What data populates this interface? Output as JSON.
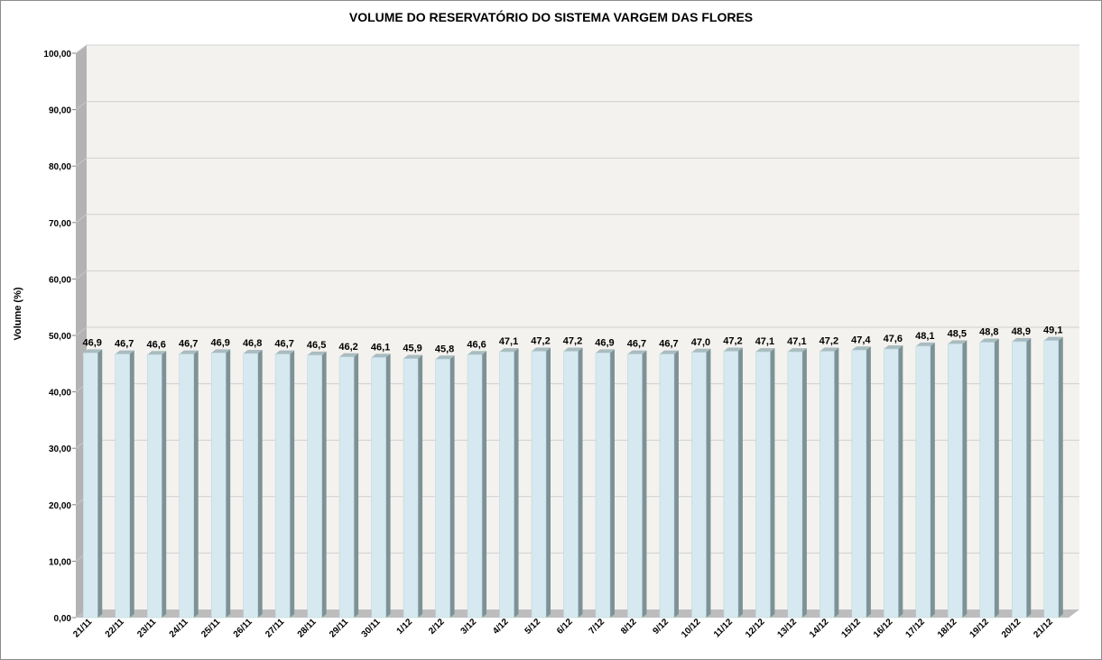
{
  "chart_data": {
    "type": "bar",
    "title": "VOLUME DO RESERVATÓRIO DO SISTEMA VARGEM DAS FLORES",
    "xlabel": "",
    "ylabel": "Volume (%)",
    "ylim": [
      0,
      100
    ],
    "yticks": [
      "0,00",
      "10,00",
      "20,00",
      "30,00",
      "40,00",
      "50,00",
      "60,00",
      "70,00",
      "80,00",
      "90,00",
      "100,00"
    ],
    "grid": true,
    "legend": "none",
    "categories": [
      "21/11",
      "22/11",
      "23/11",
      "24/11",
      "25/11",
      "26/11",
      "27/11",
      "28/11",
      "29/11",
      "30/11",
      "1/12",
      "2/12",
      "3/12",
      "4/12",
      "5/12",
      "6/12",
      "7/12",
      "8/12",
      "9/12",
      "10/12",
      "11/12",
      "12/12",
      "13/12",
      "14/12",
      "15/12",
      "16/12",
      "17/12",
      "18/12",
      "19/12",
      "20/12",
      "21/12"
    ],
    "values": [
      46.9,
      46.7,
      46.6,
      46.7,
      46.9,
      46.8,
      46.7,
      46.5,
      46.2,
      46.1,
      45.9,
      45.8,
      46.6,
      47.1,
      47.2,
      47.2,
      46.9,
      46.7,
      46.7,
      47.0,
      47.2,
      47.1,
      47.1,
      47.2,
      47.4,
      47.6,
      48.1,
      48.5,
      48.8,
      48.9,
      49.1
    ],
    "labels": [
      "46,9",
      "46,7",
      "46,6",
      "46,7",
      "46,9",
      "46,8",
      "46,7",
      "46,5",
      "46,2",
      "46,1",
      "45,9",
      "45,8",
      "46,6",
      "47,1",
      "47,2",
      "47,2",
      "46,9",
      "46,7",
      "46,7",
      "47,0",
      "47,2",
      "47,1",
      "47,1",
      "47,2",
      "47,4",
      "47,6",
      "48,1",
      "48,5",
      "48,8",
      "48,9",
      "49,1"
    ],
    "colors": {
      "bar_front": "#d6e9f0",
      "bar_side": "#7c9296",
      "bar_top": "#a9bcc0",
      "plot_back": "#f4f2ee",
      "side_wall": "#b3b3b3",
      "floor": "#bdbdbd",
      "grid": "#d0d0d0"
    }
  }
}
